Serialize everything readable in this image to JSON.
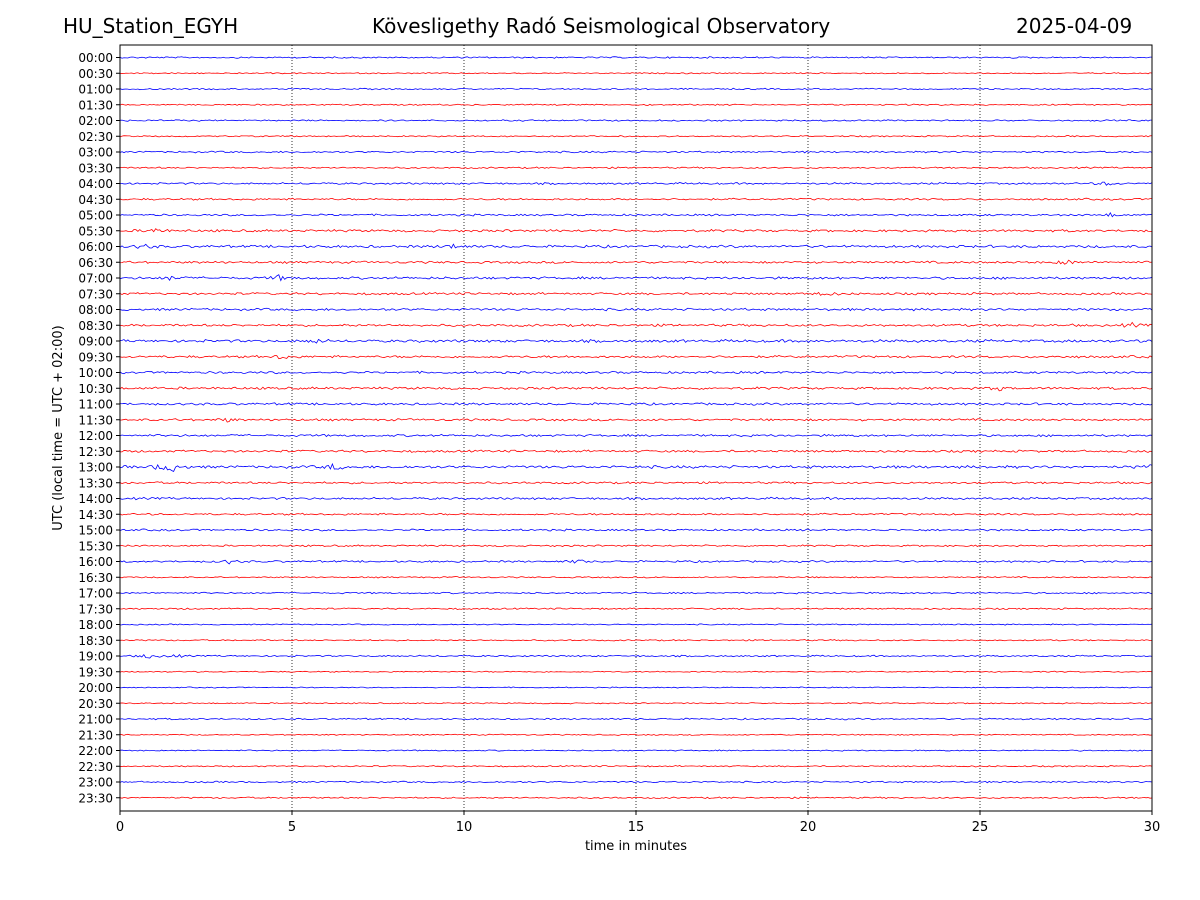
{
  "header": {
    "station": "HU_Station_EGYH",
    "title": "Kövesligethy Radó Seismological Observatory",
    "date": "2025-04-09"
  },
  "chart_data": {
    "type": "line",
    "title": "Kövesligethy Radó Seismological Observatory",
    "xlabel": "time in minutes",
    "ylabel": "UTC (local time = UTC + 02:00)",
    "xlim": [
      0,
      30
    ],
    "x_ticks": [
      0,
      5,
      10,
      15,
      20,
      25,
      30
    ],
    "x_tick_labels": [
      "0",
      "5",
      "10",
      "15",
      "20",
      "25",
      "30"
    ],
    "grid": "vertical dotted lines at x ticks",
    "trace_colors": [
      "#0000ff",
      "#ff0000"
    ],
    "row_labels": [
      "00:00",
      "00:30",
      "01:00",
      "01:30",
      "02:00",
      "02:30",
      "03:00",
      "03:30",
      "04:00",
      "04:30",
      "05:00",
      "05:30",
      "06:00",
      "06:30",
      "07:00",
      "07:30",
      "08:00",
      "08:30",
      "09:00",
      "09:30",
      "10:00",
      "10:30",
      "11:00",
      "11:30",
      "12:00",
      "12:30",
      "13:00",
      "13:30",
      "14:00",
      "14:30",
      "15:00",
      "15:30",
      "16:00",
      "16:30",
      "17:00",
      "17:30",
      "18:00",
      "18:30",
      "19:00",
      "19:30",
      "20:00",
      "20:30",
      "21:00",
      "21:30",
      "22:00",
      "22:30",
      "23:00",
      "23:30"
    ],
    "noise_level": [
      0.9,
      0.7,
      0.8,
      0.8,
      0.9,
      0.8,
      1.0,
      0.9,
      1.1,
      1.1,
      1.1,
      1.4,
      1.5,
      1.3,
      1.4,
      1.3,
      1.4,
      1.4,
      1.6,
      1.4,
      1.3,
      1.4,
      1.3,
      1.3,
      1.3,
      1.3,
      1.6,
      1.2,
      1.3,
      1.1,
      1.1,
      1.0,
      1.1,
      0.8,
      0.9,
      0.9,
      0.7,
      0.8,
      0.9,
      0.7,
      0.6,
      0.7,
      0.9,
      0.7,
      0.7,
      0.8,
      0.9,
      0.9
    ],
    "events": [
      {
        "row": "04:00",
        "minute": 28.7,
        "amplitude": 1.6
      },
      {
        "row": "05:00",
        "minute": 28.8,
        "amplitude": 1.4
      },
      {
        "row": "05:30",
        "minute": 1.0,
        "amplitude": 2.2
      },
      {
        "row": "06:00",
        "minute": 0.7,
        "amplitude": 1.8
      },
      {
        "row": "06:00",
        "minute": 9.7,
        "amplitude": 2.0
      },
      {
        "row": "06:30",
        "minute": 27.5,
        "amplitude": 2.3
      },
      {
        "row": "07:00",
        "minute": 1.5,
        "amplitude": 2.0
      },
      {
        "row": "07:00",
        "minute": 4.6,
        "amplitude": 2.1
      },
      {
        "row": "07:30",
        "minute": 20.5,
        "amplitude": 1.8
      },
      {
        "row": "08:30",
        "minute": 29.4,
        "amplitude": 1.6
      },
      {
        "row": "09:00",
        "minute": 5.7,
        "amplitude": 1.8
      },
      {
        "row": "09:30",
        "minute": 4.7,
        "amplitude": 1.9
      },
      {
        "row": "10:30",
        "minute": 25.5,
        "amplitude": 1.9
      },
      {
        "row": "11:30",
        "minute": 3.1,
        "amplitude": 1.5
      },
      {
        "row": "13:00",
        "minute": 1.2,
        "amplitude": 3.0
      },
      {
        "row": "13:00",
        "minute": 1.6,
        "amplitude": 3.4
      },
      {
        "row": "13:00",
        "minute": 6.2,
        "amplitude": 2.5
      },
      {
        "row": "13:00",
        "minute": 29.9,
        "amplitude": 1.8
      },
      {
        "row": "16:00",
        "minute": 3.2,
        "amplitude": 1.6
      },
      {
        "row": "16:00",
        "minute": 13.3,
        "amplitude": 1.5
      },
      {
        "row": "19:00",
        "minute": 0.8,
        "amplitude": 1.9
      },
      {
        "row": "19:00",
        "minute": 1.6,
        "amplitude": 1.3
      }
    ]
  }
}
